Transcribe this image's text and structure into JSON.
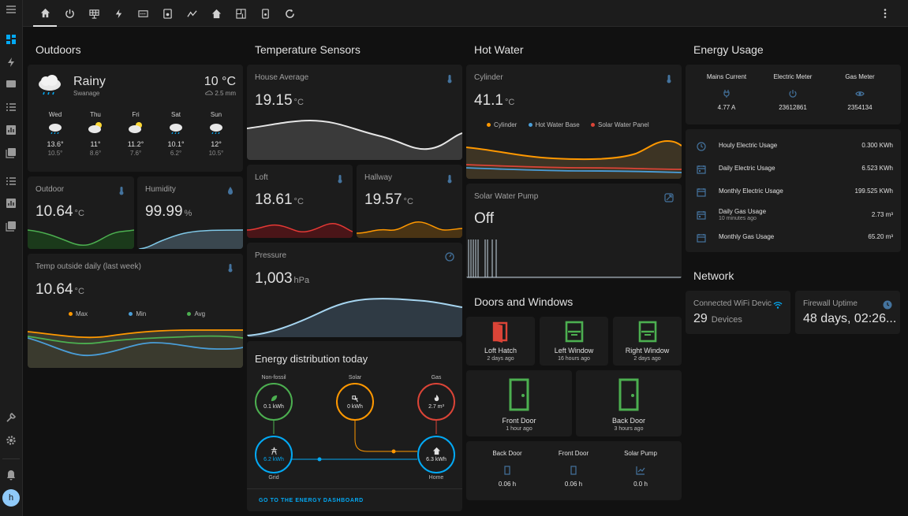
{
  "outdoors": {
    "heading": "Outdoors",
    "weather": {
      "condition": "Rainy",
      "location": "Swanage",
      "temp": "10 °C",
      "precip": "2.5 mm",
      "forecast": [
        {
          "day": "Wed",
          "hi": "13.6°",
          "lo": "10.5°",
          "icon": "rainy-icon"
        },
        {
          "day": "Thu",
          "hi": "11°",
          "lo": "8.6°",
          "icon": "partly-cloudy-icon"
        },
        {
          "day": "Fri",
          "hi": "11.2°",
          "lo": "7.6°",
          "icon": "partly-cloudy-icon"
        },
        {
          "day": "Sat",
          "hi": "10.1°",
          "lo": "6.2°",
          "icon": "rainy-icon"
        },
        {
          "day": "Sun",
          "hi": "12°",
          "lo": "10.5°",
          "icon": "rainy-icon"
        }
      ]
    },
    "outdoor": {
      "title": "Outdoor",
      "value": "10.64",
      "unit": "°C"
    },
    "humidity": {
      "title": "Humidity",
      "value": "99.99",
      "unit": "%"
    },
    "daily": {
      "title": "Temp outside daily (last week)",
      "value": "10.64",
      "unit": "°C",
      "legend": [
        "Max",
        "Min",
        "Avg"
      ]
    }
  },
  "temps": {
    "heading": "Temperature Sensors",
    "house": {
      "title": "House Average",
      "value": "19.15",
      "unit": "°C"
    },
    "loft": {
      "title": "Loft",
      "value": "18.61",
      "unit": "°C"
    },
    "hallway": {
      "title": "Hallway",
      "value": "19.57",
      "unit": "°C"
    },
    "pressure": {
      "title": "Pressure",
      "value": "1,003",
      "unit": "hPa"
    }
  },
  "energy": {
    "heading": "Energy distribution today",
    "nonfossil": {
      "label": "Non-fossil",
      "value": "0.1 kWh"
    },
    "solar": {
      "label": "Solar",
      "value": "0 kWh"
    },
    "gas": {
      "label": "Gas",
      "value": "2.7 m³"
    },
    "grid": {
      "label": "Grid",
      "value": "6.2 kWh"
    },
    "home": {
      "label": "Home",
      "value": "6.3 kWh"
    },
    "link": "GO TO THE ENERGY DASHBOARD"
  },
  "hotwater": {
    "heading": "Hot Water",
    "cylinder": {
      "title": "Cylinder",
      "value": "41.1",
      "unit": "°C",
      "legend": [
        "Cylinder",
        "Hot Water Base",
        "Solar Water Panel"
      ]
    },
    "pump": {
      "title": "Solar Water Pump",
      "value": "Off"
    }
  },
  "doors": {
    "heading": "Doors and Windows",
    "tiles": [
      {
        "name": "Loft Hatch",
        "since": "2 days ago"
      },
      {
        "name": "Left Window",
        "since": "16 hours ago"
      },
      {
        "name": "Right Window",
        "since": "2 days ago"
      },
      {
        "name": "Front Door",
        "since": "1 hour ago"
      },
      {
        "name": "Back Door",
        "since": "3 hours ago"
      }
    ],
    "glance": [
      {
        "name": "Back Door",
        "value": "0.06 h"
      },
      {
        "name": "Front Door",
        "value": "0.06 h"
      },
      {
        "name": "Solar Pump",
        "value": "0.0 h"
      }
    ]
  },
  "usage": {
    "heading": "Energy Usage",
    "glance": [
      {
        "name": "Mains Current",
        "value": "4.77 A"
      },
      {
        "name": "Electric Meter",
        "value": "23612861"
      },
      {
        "name": "Gas Meter",
        "value": "2354134"
      }
    ],
    "rows": [
      {
        "label": "Houly Electric Usage",
        "sub": "",
        "value": "0.300 KWh"
      },
      {
        "label": "Daily Electric Usage",
        "sub": "",
        "value": "6.523 KWh"
      },
      {
        "label": "Monthly Electric Usage",
        "sub": "",
        "value": "199.525 KWh"
      },
      {
        "label": "Daily Gas Usage",
        "sub": "10 minutes ago",
        "value": "2.73 m³"
      },
      {
        "label": "Monthly Gas Usage",
        "sub": "",
        "value": "65.20 m³"
      }
    ]
  },
  "network": {
    "heading": "Network",
    "wifi": {
      "title": "Connected WiFi Devic...",
      "value": "29",
      "unit": "Devices"
    },
    "uptime": {
      "title": "Firewall Uptime",
      "value": "48 days, 02:26..."
    }
  },
  "user": {
    "initial": "h"
  },
  "colors": {
    "accent": "#03a9f4",
    "orange": "#ff9800",
    "green": "#4caf50",
    "red": "#db4437",
    "icon": "#44739e"
  }
}
